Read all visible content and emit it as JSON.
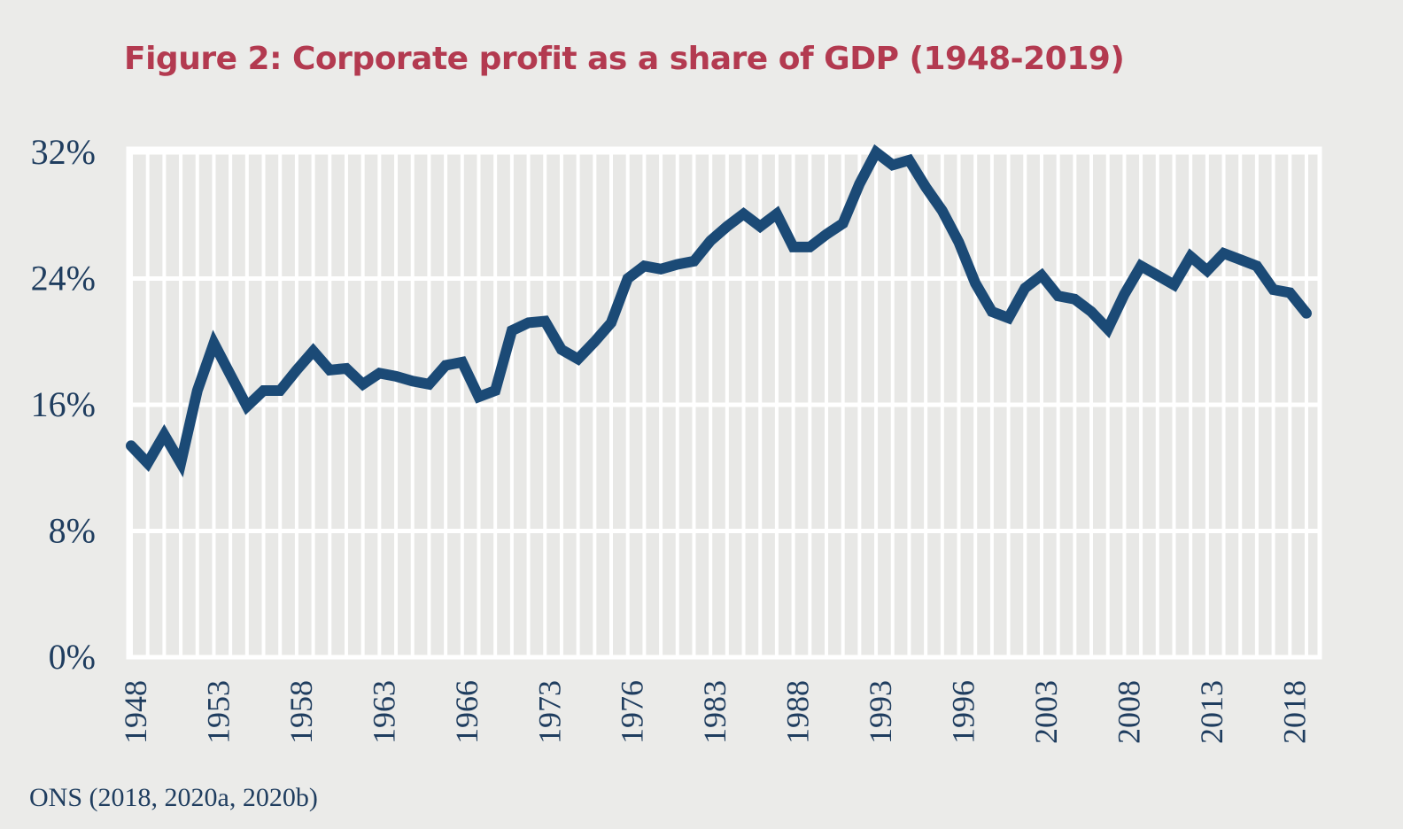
{
  "title": "Figure 2: Corporate profit as a share of GDP (1948-2019)",
  "source": "ONS (2018, 2020a, 2020b)",
  "chart_data": {
    "type": "line",
    "title": "Figure 2: Corporate profit as a share of GDP (1948-2019)",
    "xlabel": "",
    "ylabel": "",
    "ylim": [
      0,
      32
    ],
    "yticks": [
      0,
      8,
      16,
      24,
      32
    ],
    "ytick_labels": [
      "0%",
      "8%",
      "16%",
      "24%",
      "32%"
    ],
    "xtick_labels": [
      "1948",
      "1953",
      "1958",
      "1963",
      "1966",
      "1973",
      "1976",
      "1983",
      "1988",
      "1993",
      "1996",
      "2003",
      "2008",
      "2013",
      "2018"
    ],
    "grid": true,
    "line_color": "#1b4a76",
    "x": [
      1948,
      1949,
      1950,
      1951,
      1952,
      1953,
      1954,
      1955,
      1956,
      1957,
      1958,
      1959,
      1960,
      1961,
      1962,
      1963,
      1964,
      1965,
      1966,
      1967,
      1968,
      1969,
      1970,
      1971,
      1972,
      1973,
      1974,
      1975,
      1976,
      1977,
      1978,
      1979,
      1980,
      1981,
      1982,
      1983,
      1984,
      1985,
      1986,
      1987,
      1988,
      1989,
      1990,
      1991,
      1992,
      1993,
      1994,
      1995,
      1996,
      1997,
      1998,
      1999,
      2000,
      2001,
      2002,
      2003,
      2004,
      2005,
      2006,
      2007,
      2008,
      2009,
      2010,
      2011,
      2012,
      2013,
      2014,
      2015,
      2016,
      2017,
      2018,
      2019
    ],
    "values": [
      13.4,
      12.3,
      14.1,
      12.3,
      16.9,
      19.9,
      17.9,
      15.9,
      16.9,
      16.9,
      18.2,
      19.4,
      18.2,
      18.3,
      17.3,
      18.0,
      17.8,
      17.5,
      17.3,
      18.5,
      18.7,
      16.5,
      16.9,
      20.7,
      21.2,
      21.3,
      19.5,
      18.9,
      20.0,
      21.2,
      24.0,
      24.8,
      24.6,
      24.9,
      25.1,
      26.4,
      27.3,
      28.1,
      27.3,
      28.1,
      26.0,
      26.0,
      26.8,
      27.5,
      30.0,
      32.0,
      31.2,
      31.5,
      29.8,
      28.3,
      26.3,
      23.7,
      21.9,
      21.5,
      23.4,
      24.2,
      22.9,
      22.7,
      21.9,
      20.8,
      23.0,
      24.8,
      24.2,
      23.6,
      25.4,
      24.5,
      25.6,
      25.2,
      24.8,
      23.3,
      23.1,
      21.8
    ]
  }
}
